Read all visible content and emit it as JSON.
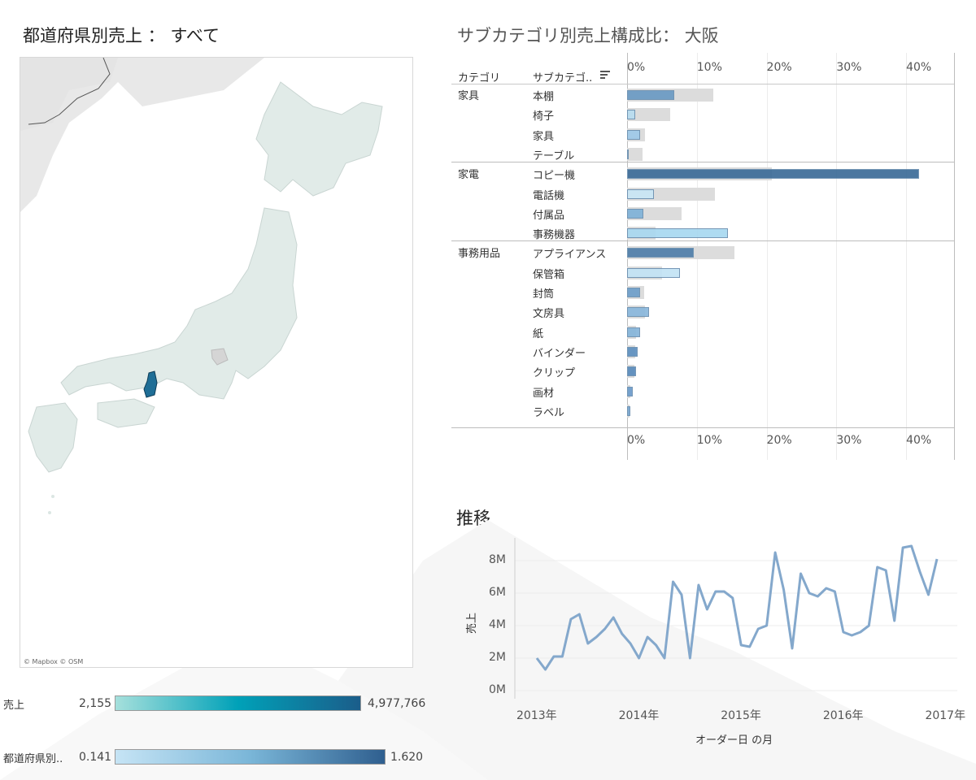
{
  "titles": {
    "map": "都道府県別売上 ： すべて",
    "bar": "サブカテゴリ別売上構成比： 大阪",
    "line": "推移"
  },
  "map": {
    "attribution": "© Mapbox © OSM",
    "highlighted_prefecture": "大阪",
    "land_color": "#e1ebe8",
    "highlight_color": "#1f6e96"
  },
  "legends": {
    "sales": {
      "label": "売上",
      "min": "2,155",
      "max": "4,977,766",
      "colors": [
        "#a6e0dc",
        "#00a1b8",
        "#1b5d8a"
      ]
    },
    "prefecture": {
      "label": "都道府県別..",
      "min": "0.141",
      "max": "1.620",
      "colors": [
        "#c6e4f5",
        "#7ab6d8",
        "#2f5f8f"
      ]
    }
  },
  "bar_chart": {
    "header_category": "カテゴリ",
    "header_subcategory": "サブカテゴ..",
    "axis_ticks": [
      "0%",
      "10%",
      "20%",
      "30%",
      "40%"
    ],
    "axis_max": 45,
    "groups": [
      {
        "category": "家具",
        "items": [
          {
            "name": "本棚",
            "value": 6.8,
            "reference": 12.3,
            "color": "#6b9ac4"
          },
          {
            "name": "椅子",
            "value": 1.2,
            "reference": 6.2,
            "color": "#b8dcf0"
          },
          {
            "name": "家具",
            "value": 1.9,
            "reference": 2.6,
            "color": "#9fc9e8"
          },
          {
            "name": "テーブル",
            "value": 0.2,
            "reference": 2.2,
            "color": "#3f6f9a"
          }
        ]
      },
      {
        "category": "家電",
        "items": [
          {
            "name": "コピー機",
            "value": 41.9,
            "reference": 20.7,
            "color": "#3c6c98"
          },
          {
            "name": "電話機",
            "value": 3.8,
            "reference": 12.6,
            "color": "#c9e6f6"
          },
          {
            "name": "付属品",
            "value": 2.3,
            "reference": 7.8,
            "color": "#7fb2d8"
          },
          {
            "name": "事務機器",
            "value": 14.5,
            "reference": 4.1,
            "color": "#a8d8f0"
          }
        ]
      },
      {
        "category": "事務用品",
        "items": [
          {
            "name": "アプライアンス",
            "value": 9.6,
            "reference": 15.4,
            "color": "#4f7eaa"
          },
          {
            "name": "保管箱",
            "value": 7.6,
            "reference": 5.0,
            "color": "#c3e3f5"
          },
          {
            "name": "封筒",
            "value": 1.9,
            "reference": 2.4,
            "color": "#6e9fca"
          },
          {
            "name": "文房具",
            "value": 3.2,
            "reference": 2.6,
            "color": "#8ab8dc"
          },
          {
            "name": "紙",
            "value": 1.9,
            "reference": 1.3,
            "color": "#86b5da"
          },
          {
            "name": "バインダー",
            "value": 1.5,
            "reference": 1.2,
            "color": "#5f91c0"
          },
          {
            "name": "クリップ",
            "value": 1.3,
            "reference": 1.0,
            "color": "#5a8cbd"
          },
          {
            "name": "画材",
            "value": 0.8,
            "reference": 0.5,
            "color": "#6d9ccb"
          },
          {
            "name": "ラベル",
            "value": 0.5,
            "reference": 0.3,
            "color": "#7aa9d2"
          }
        ]
      }
    ]
  },
  "chart_data": {
    "type": "line",
    "title": "推移",
    "xlabel": "オーダー日 の月",
    "ylabel": "売上",
    "x_ticks": [
      "2013年",
      "2014年",
      "2015年",
      "2016年",
      "2017年"
    ],
    "y_ticks": [
      "0M",
      "2M",
      "4M",
      "6M",
      "8M"
    ],
    "ylim": [
      0,
      9
    ],
    "color": "#84a8cc",
    "series": [
      {
        "values": [
          2.0,
          1.3,
          2.1,
          2.1,
          4.4,
          4.7,
          2.9,
          3.3,
          3.8,
          4.5,
          3.5,
          2.9,
          2.0,
          3.3,
          2.8,
          2.0,
          6.7,
          5.9,
          2.0,
          6.5,
          5.0,
          6.1,
          6.1,
          5.7,
          2.8,
          2.7,
          3.8,
          4.0,
          8.5,
          6.2,
          2.6,
          7.2,
          6.0,
          5.8,
          6.3,
          6.1,
          3.6,
          3.4,
          3.6,
          4.0,
          7.6,
          7.4,
          4.3,
          8.8,
          8.9,
          7.3,
          5.9,
          8.1
        ]
      }
    ]
  }
}
